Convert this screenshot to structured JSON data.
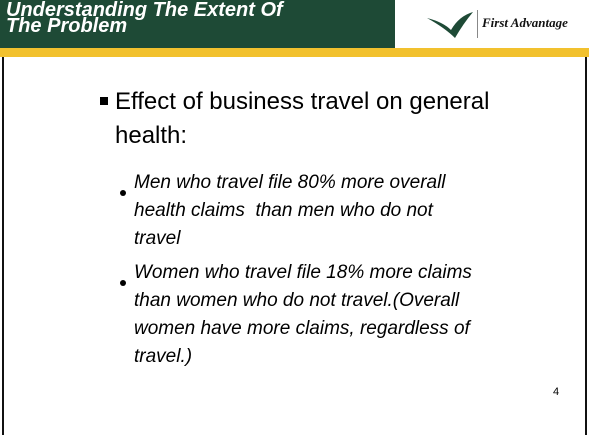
{
  "header": {
    "title_lines": [
      "Understanding The Extent Of",
      "The Problem"
    ],
    "logo_text": "First Advantage"
  },
  "bullets": [
    {
      "text": "Effect of business travel on general health:",
      "sub_bullets": [
        "Men who travel file 80% more overall health claims  than men who do not travel",
        "Women who travel file 18% more claims than women who do not travel.(Overall women have more claims, regardless of travel.)"
      ]
    }
  ],
  "page_number": "4"
}
